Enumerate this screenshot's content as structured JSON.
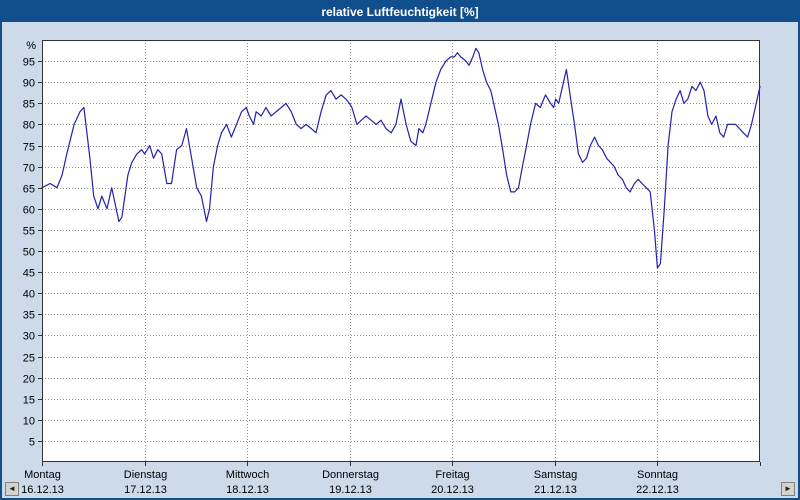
{
  "window": {
    "title": "relative Luftfeuchtigkeit [%]"
  },
  "colors": {
    "titlebar": "#114e8c",
    "background": "#ccdaea",
    "line": "#2222aa",
    "grid": "#909090"
  },
  "scrollbar": {
    "left_arrow": "◄",
    "right_arrow": "►"
  },
  "chart_data": {
    "type": "line",
    "title": "relative Luftfeuchtigkeit [%]",
    "ylabel": "%",
    "ylim": [
      0,
      100
    ],
    "y_ticks": [
      5,
      10,
      15,
      20,
      25,
      30,
      35,
      40,
      45,
      50,
      55,
      60,
      65,
      70,
      75,
      80,
      85,
      90,
      95
    ],
    "x_range_hours": [
      0,
      168
    ],
    "grid": true,
    "x_days": [
      {
        "name": "Montag",
        "date": "16.12.13"
      },
      {
        "name": "Dienstag",
        "date": "17.12.13"
      },
      {
        "name": "Mittwoch",
        "date": "18.12.13"
      },
      {
        "name": "Donnerstag",
        "date": "19.12.13"
      },
      {
        "name": "Freitag",
        "date": "20.12.13"
      },
      {
        "name": "Samstag",
        "date": "21.12.13"
      },
      {
        "name": "Sonntag",
        "date": "22.12.13"
      }
    ],
    "series": [
      {
        "name": "relative Luftfeuchtigkeit",
        "color": "#2222aa",
        "points": [
          [
            0,
            65
          ],
          [
            1.9,
            66
          ],
          [
            3.5,
            65
          ],
          [
            4.7,
            68
          ],
          [
            5.8,
            73
          ],
          [
            7.5,
            80
          ],
          [
            8.9,
            83
          ],
          [
            9.8,
            84
          ],
          [
            11.2,
            72
          ],
          [
            12.1,
            63
          ],
          [
            13.1,
            60
          ],
          [
            14,
            63
          ],
          [
            15.2,
            60
          ],
          [
            16.3,
            65
          ],
          [
            18,
            57
          ],
          [
            18.7,
            58
          ],
          [
            20.1,
            68
          ],
          [
            21,
            71
          ],
          [
            22.2,
            73
          ],
          [
            23.3,
            74
          ],
          [
            24,
            73
          ],
          [
            25.2,
            75
          ],
          [
            26.1,
            72
          ],
          [
            27.1,
            74
          ],
          [
            28,
            73
          ],
          [
            29.2,
            66
          ],
          [
            30.3,
            66
          ],
          [
            31.5,
            74
          ],
          [
            32.7,
            75
          ],
          [
            33.8,
            79
          ],
          [
            35,
            72
          ],
          [
            36.2,
            65
          ],
          [
            37.3,
            63
          ],
          [
            38.5,
            57
          ],
          [
            39.2,
            60
          ],
          [
            40.1,
            70
          ],
          [
            41.1,
            75
          ],
          [
            42,
            78
          ],
          [
            43.2,
            80
          ],
          [
            44.3,
            77
          ],
          [
            45.5,
            80
          ],
          [
            46.7,
            83
          ],
          [
            47.8,
            84
          ],
          [
            48.5,
            82
          ],
          [
            49.5,
            80
          ],
          [
            50.1,
            83
          ],
          [
            51.3,
            82
          ],
          [
            52.4,
            84
          ],
          [
            53.6,
            82
          ],
          [
            54.8,
            83
          ],
          [
            56,
            84
          ],
          [
            57.1,
            85
          ],
          [
            58.3,
            83
          ],
          [
            59.5,
            80
          ],
          [
            60.6,
            79
          ],
          [
            61.8,
            80
          ],
          [
            63,
            79
          ],
          [
            64.1,
            78
          ],
          [
            65.3,
            83
          ],
          [
            66.5,
            87
          ],
          [
            67.6,
            88
          ],
          [
            68.8,
            86
          ],
          [
            70,
            87
          ],
          [
            71.1,
            86
          ],
          [
            71.9,
            85
          ],
          [
            72.5,
            84
          ],
          [
            73.7,
            80
          ],
          [
            74.7,
            81
          ],
          [
            75.8,
            82
          ],
          [
            77,
            81
          ],
          [
            78.2,
            80
          ],
          [
            79.3,
            81
          ],
          [
            80.5,
            79
          ],
          [
            81.7,
            78
          ],
          [
            82.8,
            80
          ],
          [
            84,
            86
          ],
          [
            85.2,
            80
          ],
          [
            86.3,
            76
          ],
          [
            87.5,
            75
          ],
          [
            88.2,
            79
          ],
          [
            89.1,
            78
          ],
          [
            89.8,
            80
          ],
          [
            91,
            85
          ],
          [
            92.2,
            90
          ],
          [
            93.3,
            93
          ],
          [
            94.5,
            95
          ],
          [
            95.6,
            96
          ],
          [
            96.5,
            96
          ],
          [
            97.2,
            97
          ],
          [
            98,
            96
          ],
          [
            99.2,
            95
          ],
          [
            99.9,
            94
          ],
          [
            100.8,
            96
          ],
          [
            101.5,
            98
          ],
          [
            102.2,
            97
          ],
          [
            103.1,
            93
          ],
          [
            104,
            90
          ],
          [
            105,
            88
          ],
          [
            105.9,
            84
          ],
          [
            106.8,
            80
          ],
          [
            107.8,
            74
          ],
          [
            108.7,
            68
          ],
          [
            109.7,
            64
          ],
          [
            110.6,
            64
          ],
          [
            111.5,
            65
          ],
          [
            112.4,
            70
          ],
          [
            113.4,
            75
          ],
          [
            114.3,
            80
          ],
          [
            115.5,
            85
          ],
          [
            116.6,
            84
          ],
          [
            117.8,
            87
          ],
          [
            119,
            85
          ],
          [
            119.7,
            84
          ],
          [
            120.2,
            86
          ],
          [
            120.9,
            85
          ],
          [
            121.8,
            89
          ],
          [
            122.7,
            93
          ],
          [
            123.7,
            86
          ],
          [
            124.6,
            80
          ],
          [
            125.5,
            73
          ],
          [
            126.5,
            71
          ],
          [
            127.4,
            72
          ],
          [
            128.3,
            75
          ],
          [
            129.3,
            77
          ],
          [
            130.2,
            75
          ],
          [
            131.1,
            74
          ],
          [
            132.1,
            72
          ],
          [
            133,
            71
          ],
          [
            133.9,
            70
          ],
          [
            134.8,
            68
          ],
          [
            135.8,
            67
          ],
          [
            136.7,
            65
          ],
          [
            137.6,
            64
          ],
          [
            138.6,
            66
          ],
          [
            139.5,
            67
          ],
          [
            140.4,
            66
          ],
          [
            141.4,
            65
          ],
          [
            142.3,
            64
          ],
          [
            143.3,
            55
          ],
          [
            144,
            46
          ],
          [
            144.7,
            47
          ],
          [
            145.6,
            60
          ],
          [
            146.5,
            75
          ],
          [
            147.4,
            83
          ],
          [
            148.4,
            86
          ],
          [
            149.3,
            88
          ],
          [
            150.2,
            85
          ],
          [
            151.1,
            86
          ],
          [
            152.1,
            89
          ],
          [
            153,
            88
          ],
          [
            154,
            90
          ],
          [
            154.9,
            88
          ],
          [
            155.8,
            82
          ],
          [
            156.7,
            80
          ],
          [
            157.7,
            82
          ],
          [
            158.6,
            78
          ],
          [
            159.5,
            77
          ],
          [
            160.4,
            80
          ],
          [
            161.4,
            80
          ],
          [
            162.3,
            80
          ],
          [
            163.2,
            79
          ],
          [
            164.1,
            78
          ],
          [
            165.1,
            77
          ],
          [
            166,
            80
          ],
          [
            166.9,
            84
          ],
          [
            168,
            89
          ]
        ]
      }
    ]
  }
}
